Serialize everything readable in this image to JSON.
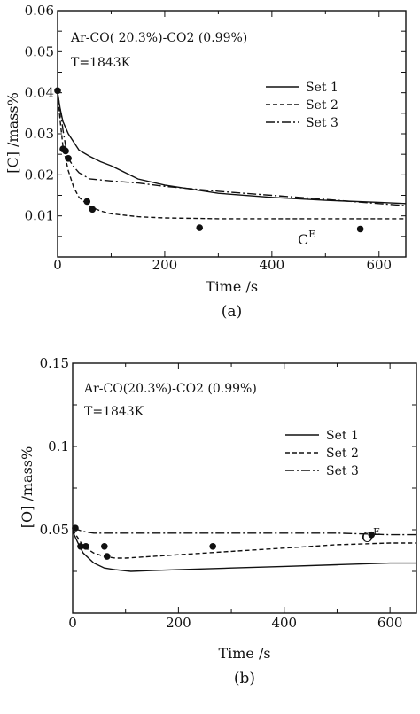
{
  "chart_data": [
    {
      "type": "line",
      "panel_label": "(a)",
      "title": "",
      "conditions": [
        "Ar-CO( 20.3%)-CO2 (0.99%)",
        "T=1843K"
      ],
      "xlabel": "Time /s",
      "ylabel": "[C] /mass%",
      "xlim": [
        0,
        650
      ],
      "ylim": [
        0,
        0.06
      ],
      "xticks": [
        "0",
        "200",
        "400",
        "600"
      ],
      "yticks": [
        "0.01",
        "0.02",
        "0.03",
        "0.04",
        "0.05",
        "0.06"
      ],
      "legend_position": "right",
      "equilibrium_label": "C",
      "equilibrium_sup": "E",
      "equilibrium_value": 0.0093,
      "series": [
        {
          "name": "Set 1",
          "style": "solid",
          "x": [
            0,
            5,
            10,
            20,
            30,
            40,
            60,
            80,
            100,
            150,
            200,
            300,
            400,
            500,
            600,
            650
          ],
          "y": [
            0.04,
            0.036,
            0.033,
            0.03,
            0.028,
            0.026,
            0.0245,
            0.0232,
            0.0222,
            0.019,
            0.0175,
            0.0155,
            0.0145,
            0.0138,
            0.0133,
            0.013
          ]
        },
        {
          "name": "Set 2",
          "style": "dashed",
          "x": [
            0,
            5,
            10,
            20,
            30,
            40,
            60,
            80,
            100,
            150,
            200,
            300,
            650
          ],
          "y": [
            0.04,
            0.033,
            0.027,
            0.021,
            0.017,
            0.0145,
            0.0123,
            0.0112,
            0.0105,
            0.0098,
            0.0095,
            0.0093,
            0.0093
          ]
        },
        {
          "name": "Set 3",
          "style": "dashdot",
          "x": [
            0,
            5,
            10,
            15,
            20,
            30,
            40,
            60,
            100,
            150,
            200,
            300,
            400,
            500,
            600,
            650
          ],
          "y": [
            0.04,
            0.036,
            0.031,
            0.027,
            0.024,
            0.022,
            0.0205,
            0.019,
            0.0185,
            0.018,
            0.0172,
            0.016,
            0.015,
            0.014,
            0.013,
            0.0125
          ]
        }
      ],
      "points": {
        "x": [
          0,
          10,
          15,
          20,
          55,
          65,
          265,
          565
        ],
        "y": [
          0.0405,
          0.0263,
          0.0258,
          0.024,
          0.0135,
          0.0116,
          0.0071,
          0.0068
        ]
      }
    },
    {
      "type": "line",
      "panel_label": "(b)",
      "title": "",
      "conditions": [
        "Ar-CO(20.3%)-CO2 (0.99%)",
        "T=1843K"
      ],
      "xlabel": "Time /s",
      "ylabel": "[O] /mass%",
      "xlim": [
        0,
        650
      ],
      "ylim": [
        0,
        0.15
      ],
      "xticks": [
        "0",
        "200",
        "400",
        "600"
      ],
      "yticks": [
        "0.05",
        "0.1",
        "0.15"
      ],
      "legend_position": "right",
      "equilibrium_label": "O",
      "equilibrium_sup": "E",
      "equilibrium_value": 0.048,
      "series": [
        {
          "name": "Set 1",
          "style": "solid",
          "x": [
            0,
            10,
            20,
            40,
            60,
            80,
            110,
            150,
            200,
            300,
            400,
            500,
            600,
            650
          ],
          "y": [
            0.049,
            0.042,
            0.036,
            0.03,
            0.027,
            0.026,
            0.025,
            0.0255,
            0.026,
            0.027,
            0.028,
            0.029,
            0.03,
            0.03
          ]
        },
        {
          "name": "Set 2",
          "style": "dashed",
          "x": [
            0,
            10,
            20,
            40,
            60,
            80,
            100,
            150,
            200,
            300,
            400,
            500,
            600,
            650
          ],
          "y": [
            0.05,
            0.045,
            0.04,
            0.036,
            0.034,
            0.033,
            0.033,
            0.034,
            0.035,
            0.037,
            0.039,
            0.041,
            0.042,
            0.042
          ]
        },
        {
          "name": "Set 3",
          "style": "dashdot",
          "x": [
            0,
            10,
            20,
            40,
            60,
            100,
            150,
            200,
            300,
            400,
            500,
            600,
            650
          ],
          "y": [
            0.051,
            0.05,
            0.049,
            0.048,
            0.048,
            0.048,
            0.048,
            0.048,
            0.048,
            0.048,
            0.048,
            0.047,
            0.047
          ]
        }
      ],
      "points": {
        "x": [
          5,
          15,
          25,
          60,
          65,
          265,
          565
        ],
        "y": [
          0.051,
          0.04,
          0.04,
          0.04,
          0.034,
          0.04,
          0.047
        ]
      }
    }
  ]
}
